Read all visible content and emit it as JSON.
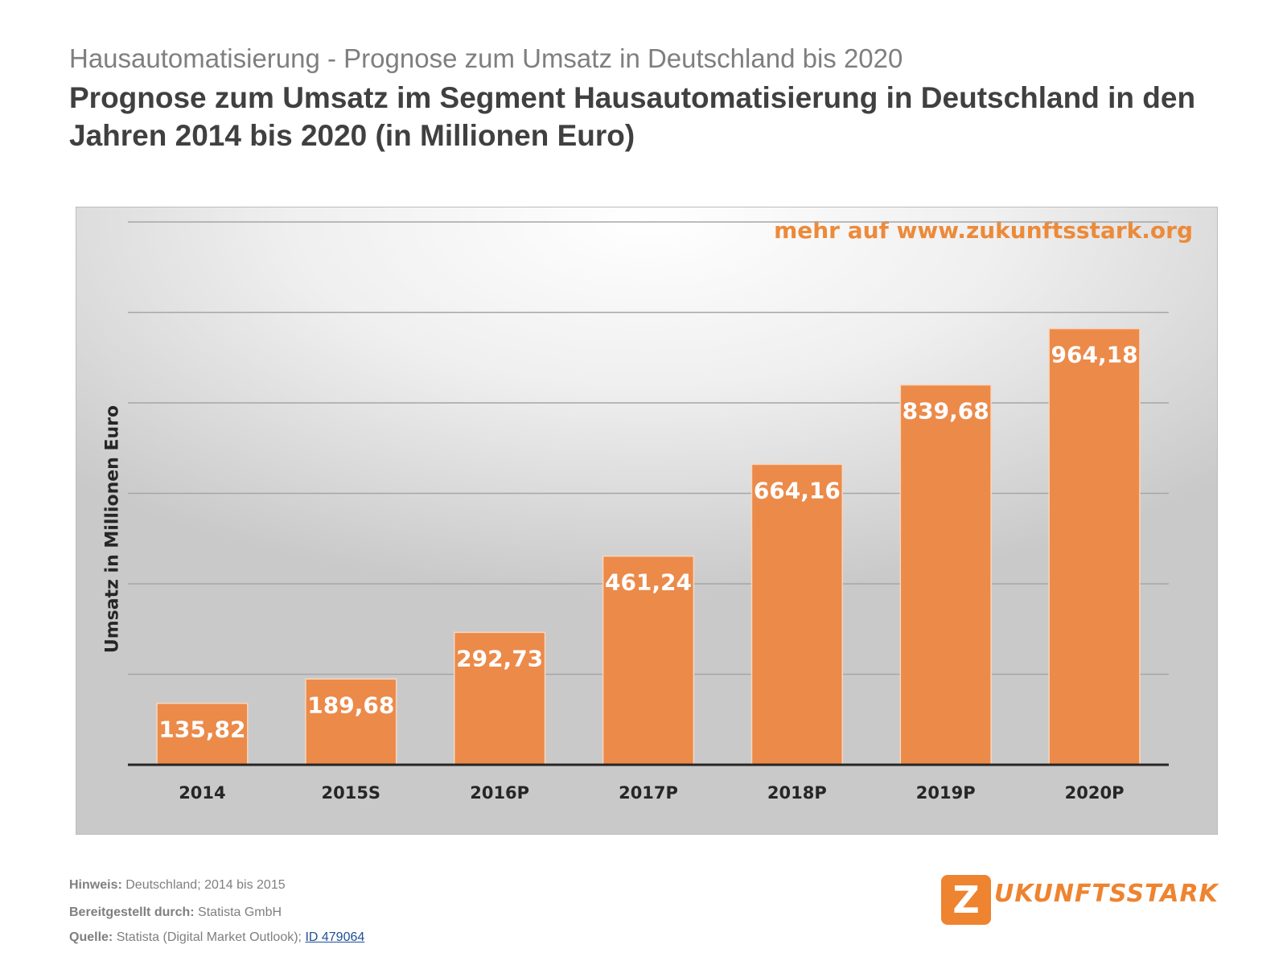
{
  "header": {
    "kicker": "Hausautomatisierung - Prognose zum Umsatz in Deutschland bis 2020",
    "title": "Prognose zum Umsatz im Segment Hausautomatisierung in Deutschland in den Jahren 2014 bis 2020 (in Millionen Euro)"
  },
  "watermark": "mehr auf www.zukunftsstark.org",
  "chart_data": {
    "type": "bar",
    "categories": [
      "2014",
      "2015S",
      "2016P",
      "2017P",
      "2018P",
      "2019P",
      "2020P"
    ],
    "values": [
      135.82,
      189.68,
      292.73,
      461.24,
      664.16,
      839.68,
      964.18
    ],
    "value_labels": [
      "135,82",
      "189,68",
      "292,73",
      "461,24",
      "664,16",
      "839,68",
      "964,18"
    ],
    "ylabel": "Umsatz in Millionen Euro",
    "ylim": [
      0,
      1200
    ],
    "grid": true,
    "bar_color": "#ec8a4a"
  },
  "footer": {
    "note_label": "Hinweis:",
    "note_text": "Deutschland; 2014 bis 2015",
    "provided_label": "Bereitgestellt durch:",
    "provided_text": "Statista GmbH",
    "source_label": "Quelle:",
    "source_text": "Statista (Digital Market Outlook);",
    "source_link": "ID 479064"
  },
  "logo": {
    "mark": "Z",
    "text": "UKUNFTSSTARK"
  }
}
